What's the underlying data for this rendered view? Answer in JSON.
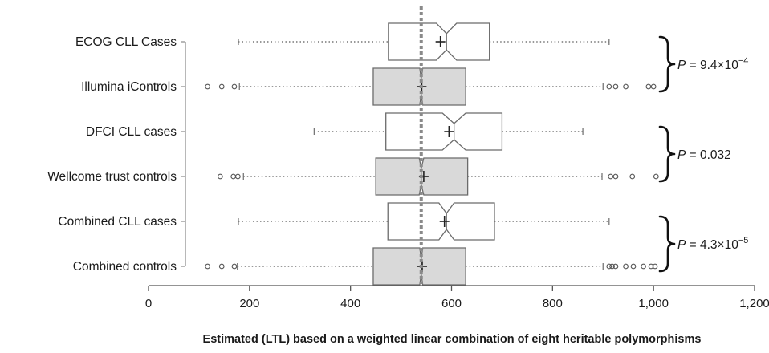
{
  "chart_data": {
    "type": "boxplot",
    "orientation": "horizontal",
    "title": "",
    "xlabel": "Estimated (LTL) based on a weighted linear combination of eight heritable polymorphisms",
    "ylabel": "",
    "xlim": [
      0,
      1200
    ],
    "xticks": [
      0,
      200,
      400,
      600,
      800,
      1000,
      1200
    ],
    "xtick_labels": [
      "0",
      "200",
      "400",
      "600",
      "800",
      "1,000",
      "1,200"
    ],
    "reference_line": 540,
    "notched": true,
    "series": [
      {
        "name": "ECOG CLL Cases",
        "fill": "#ffffff",
        "whisker_low": 178,
        "q1": 475,
        "notch_low": 570,
        "median": 590,
        "notch_high": 610,
        "q3": 675,
        "whisker_high": 912,
        "mean": 578,
        "outliers": []
      },
      {
        "name": "Illumina iControls",
        "fill": "#d9d9d9",
        "whisker_low": 180,
        "q1": 445,
        "notch_low": 537,
        "median": 540,
        "notch_high": 543,
        "q3": 628,
        "whisker_high": 900,
        "mean": 541,
        "outliers": [
          117,
          145,
          170,
          912,
          925,
          945,
          990,
          1000
        ]
      },
      {
        "name": "DFCI CLL cases",
        "fill": "#ffffff",
        "whisker_low": 328,
        "q1": 470,
        "notch_low": 582,
        "median": 605,
        "notch_high": 628,
        "q3": 700,
        "whisker_high": 860,
        "mean": 595,
        "outliers": []
      },
      {
        "name": "Wellcome trust controls",
        "fill": "#d9d9d9",
        "whisker_low": 188,
        "q1": 450,
        "notch_low": 536,
        "median": 540,
        "notch_high": 545,
        "q3": 632,
        "whisker_high": 898,
        "mean": 545,
        "outliers": [
          142,
          168,
          177,
          915,
          925,
          958,
          1005
        ]
      },
      {
        "name": "Combined CLL cases",
        "fill": "#ffffff",
        "whisker_low": 178,
        "q1": 474,
        "notch_low": 575,
        "median": 590,
        "notch_high": 605,
        "q3": 685,
        "whisker_high": 912,
        "mean": 586,
        "outliers": []
      },
      {
        "name": "Combined controls",
        "fill": "#d9d9d9",
        "whisker_low": 176,
        "q1": 445,
        "notch_low": 537,
        "median": 540,
        "notch_high": 543,
        "q3": 628,
        "whisker_high": 900,
        "mean": 542,
        "outliers": [
          117,
          145,
          170,
          912,
          918,
          925,
          945,
          960,
          980,
          995,
          1003
        ]
      }
    ],
    "comparisons": [
      {
        "pairs": [
          "ECOG CLL Cases",
          "Illumina iControls"
        ],
        "label": "P = 9.4×10",
        "exponent": "−4"
      },
      {
        "pairs": [
          "DFCI CLL cases",
          "Wellcome trust controls"
        ],
        "label": "P = 0.032",
        "exponent": ""
      },
      {
        "pairs": [
          "Combined CLL cases",
          "Combined controls"
        ],
        "label": "P = 4.3×10",
        "exponent": "−5"
      }
    ]
  }
}
